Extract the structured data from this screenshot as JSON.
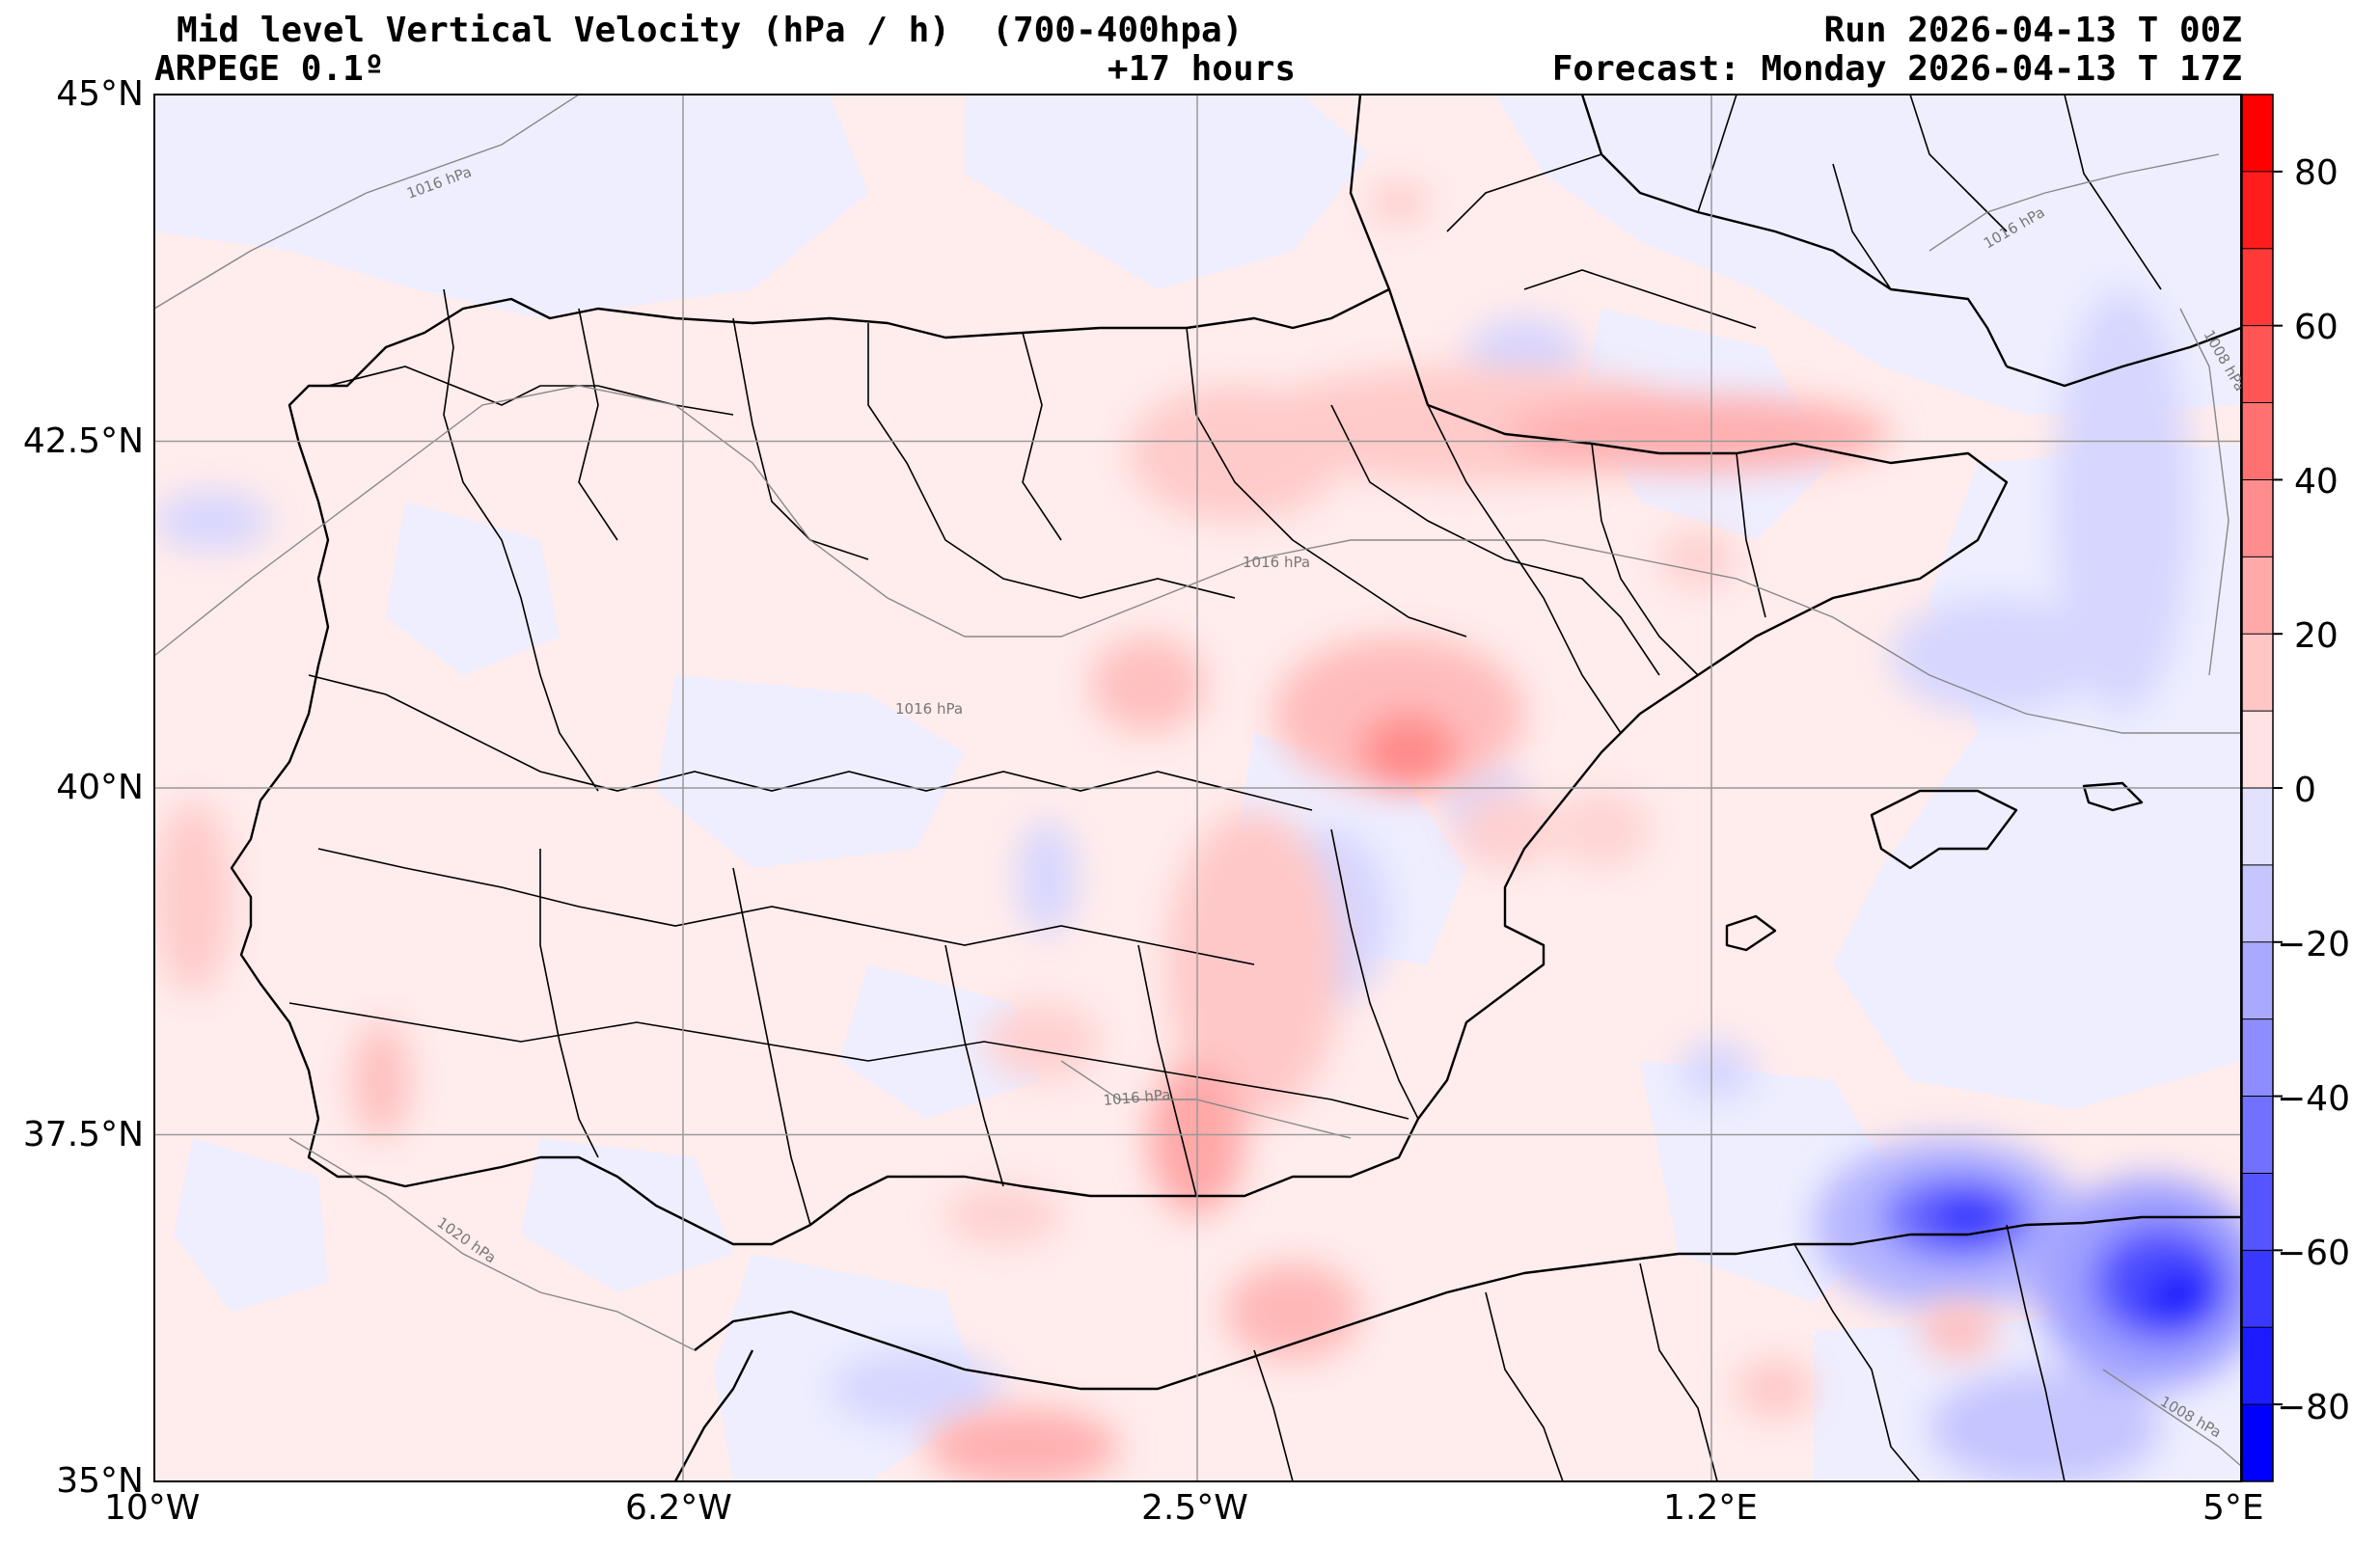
{
  "header": {
    "title": "Mid level Vertical Velocity (hPa / h)  (700-400hpa)",
    "model": "ARPEGE 0.1º",
    "lead": "+17 hours",
    "run": "Run 2026-04-13 T 00Z",
    "forecast": "Forecast: Monday 2026-04-13 T 17Z"
  },
  "axes": {
    "lat_labels": [
      "45°N",
      "42.5°N",
      "40°N",
      "37.5°N",
      "35°N"
    ],
    "lon_labels": [
      "10°W",
      "6.2°W",
      "2.5°W",
      "1.2°E",
      "5°E"
    ]
  },
  "colorbar": {
    "tick_labels": [
      "80",
      "60",
      "40",
      "20",
      "0",
      "−20",
      "−40",
      "−60",
      "−80"
    ],
    "range": [
      -90,
      90
    ],
    "positive_color": "#ff0000",
    "negative_color": "#0000ff"
  },
  "isobars": [
    "1016 hPa",
    "1016 hPa",
    "1016 hPa",
    "1016 hPa",
    "1020 hPa",
    "1016 hPa",
    "1008 hPa",
    "1008 hPa"
  ]
}
